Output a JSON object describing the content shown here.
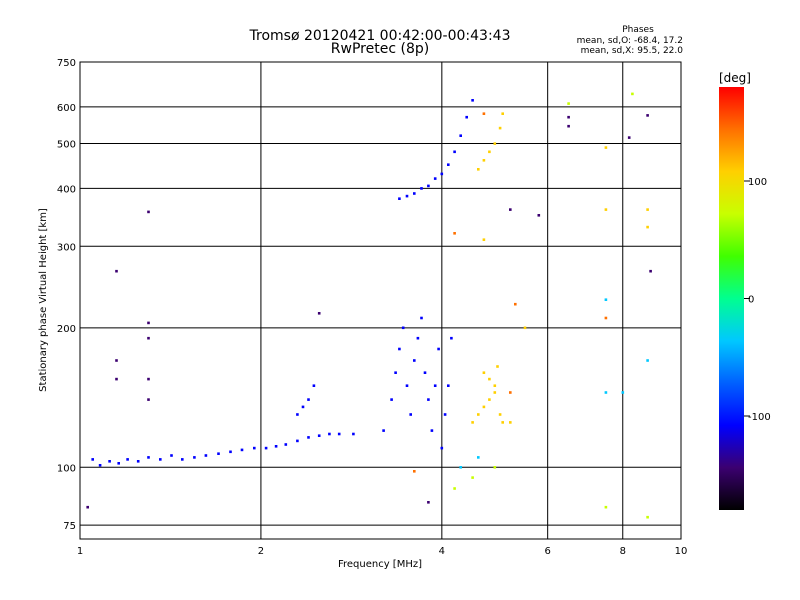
{
  "chart_data": {
    "type": "scatter",
    "title": "Tromsø 20120421 00:42:00-00:43:43",
    "subtitle": "RwPretec (8p)",
    "xlabel": "Frequency [MHz]",
    "ylabel": "Stationary phase Virtual Height [km]",
    "xscale": "log",
    "yscale": "log",
    "xlim": [
      1,
      10
    ],
    "ylim": [
      70,
      750
    ],
    "x_ticks": [
      1,
      2,
      4,
      6,
      8,
      10
    ],
    "y_ticks": [
      75,
      100,
      200,
      300,
      400,
      500,
      600,
      750
    ],
    "grid": true,
    "phase_stats": {
      "header": "Phases",
      "line_o": "mean, sd,O: -68.4, 17.2",
      "line_x": "mean, sd,X:  95.5, 22.0"
    },
    "colorbar": {
      "label": "[deg]",
      "range": [
        -180,
        180
      ],
      "ticks": [
        100,
        0,
        -100
      ],
      "colormap": [
        "#000000",
        "#3b0070",
        "#0000ff",
        "#0060ff",
        "#00c8ff",
        "#00ff90",
        "#40ff00",
        "#c8ff00",
        "#ffd000",
        "#ff7000",
        "#ff0000"
      ]
    },
    "series": [
      {
        "phase": -100,
        "points": [
          [
            1.05,
            104
          ],
          [
            1.08,
            101
          ],
          [
            1.12,
            103
          ],
          [
            1.16,
            102
          ],
          [
            1.2,
            104
          ],
          [
            1.25,
            103
          ],
          [
            1.3,
            105
          ],
          [
            1.36,
            104
          ],
          [
            1.42,
            106
          ],
          [
            1.48,
            104
          ],
          [
            1.55,
            105
          ],
          [
            1.62,
            106
          ],
          [
            1.7,
            107
          ],
          [
            1.78,
            108
          ],
          [
            1.86,
            109
          ],
          [
            1.95,
            110
          ],
          [
            2.04,
            110
          ],
          [
            2.12,
            111
          ],
          [
            2.2,
            112
          ],
          [
            2.3,
            114
          ],
          [
            2.4,
            116
          ],
          [
            2.5,
            117
          ],
          [
            2.6,
            118
          ],
          [
            2.7,
            118
          ],
          [
            2.85,
            118
          ],
          [
            2.3,
            130
          ],
          [
            2.35,
            135
          ],
          [
            2.4,
            140
          ],
          [
            2.45,
            150
          ],
          [
            3.2,
            120
          ],
          [
            3.3,
            140
          ],
          [
            3.35,
            160
          ],
          [
            3.4,
            180
          ],
          [
            3.45,
            200
          ],
          [
            3.5,
            150
          ],
          [
            3.55,
            130
          ],
          [
            3.6,
            170
          ],
          [
            3.65,
            190
          ],
          [
            3.7,
            210
          ],
          [
            3.75,
            160
          ],
          [
            3.8,
            140
          ],
          [
            3.85,
            120
          ],
          [
            3.9,
            150
          ],
          [
            3.95,
            180
          ],
          [
            4.0,
            110
          ],
          [
            4.05,
            130
          ],
          [
            4.1,
            150
          ],
          [
            4.15,
            190
          ],
          [
            3.4,
            380
          ],
          [
            3.5,
            385
          ],
          [
            3.6,
            390
          ],
          [
            3.7,
            400
          ],
          [
            3.8,
            405
          ],
          [
            3.9,
            420
          ],
          [
            4.0,
            430
          ],
          [
            4.1,
            450
          ],
          [
            4.2,
            480
          ],
          [
            4.3,
            520
          ],
          [
            4.4,
            570
          ],
          [
            4.5,
            620
          ]
        ]
      },
      {
        "phase": 115,
        "points": [
          [
            4.5,
            125
          ],
          [
            4.6,
            130
          ],
          [
            4.7,
            135
          ],
          [
            4.8,
            140
          ],
          [
            4.9,
            145
          ],
          [
            5.0,
            130
          ],
          [
            4.7,
            160
          ],
          [
            4.8,
            155
          ],
          [
            4.9,
            150
          ],
          [
            4.95,
            165
          ],
          [
            5.05,
            125
          ],
          [
            5.2,
            125
          ],
          [
            4.6,
            440
          ],
          [
            4.7,
            460
          ],
          [
            4.8,
            480
          ],
          [
            4.9,
            500
          ],
          [
            5.0,
            540
          ],
          [
            5.05,
            580
          ],
          [
            7.5,
            490
          ],
          [
            7.5,
            360
          ],
          [
            8.8,
            360
          ],
          [
            8.8,
            330
          ],
          [
            4.7,
            310
          ],
          [
            5.5,
            200
          ]
        ]
      },
      {
        "phase": 80,
        "points": [
          [
            4.2,
            90
          ],
          [
            4.5,
            95
          ],
          [
            4.9,
            100
          ],
          [
            7.5,
            82
          ],
          [
            8.8,
            78
          ],
          [
            6.5,
            610
          ],
          [
            8.3,
            640
          ]
        ]
      },
      {
        "phase": -40,
        "points": [
          [
            4.3,
            100
          ],
          [
            4.6,
            105
          ],
          [
            7.5,
            230
          ],
          [
            8.8,
            170
          ],
          [
            7.5,
            145
          ],
          [
            8.0,
            145
          ]
        ]
      },
      {
        "phase": -160,
        "points": [
          [
            1.3,
            356
          ],
          [
            1.15,
            265
          ],
          [
            1.3,
            205
          ],
          [
            1.3,
            190
          ],
          [
            1.3,
            155
          ],
          [
            1.3,
            140
          ],
          [
            1.15,
            170
          ],
          [
            1.15,
            155
          ],
          [
            2.5,
            215
          ],
          [
            5.2,
            360
          ],
          [
            5.8,
            350
          ],
          [
            8.9,
            265
          ],
          [
            6.5,
            545
          ],
          [
            6.5,
            570
          ],
          [
            8.8,
            575
          ],
          [
            8.2,
            515
          ],
          [
            3.8,
            84
          ],
          [
            1.03,
            82
          ]
        ]
      },
      {
        "phase": 160,
        "points": [
          [
            5.3,
            225
          ],
          [
            7.5,
            210
          ],
          [
            5.2,
            145
          ],
          [
            3.6,
            98
          ],
          [
            4.2,
            320
          ],
          [
            4.7,
            580
          ]
        ]
      }
    ]
  }
}
